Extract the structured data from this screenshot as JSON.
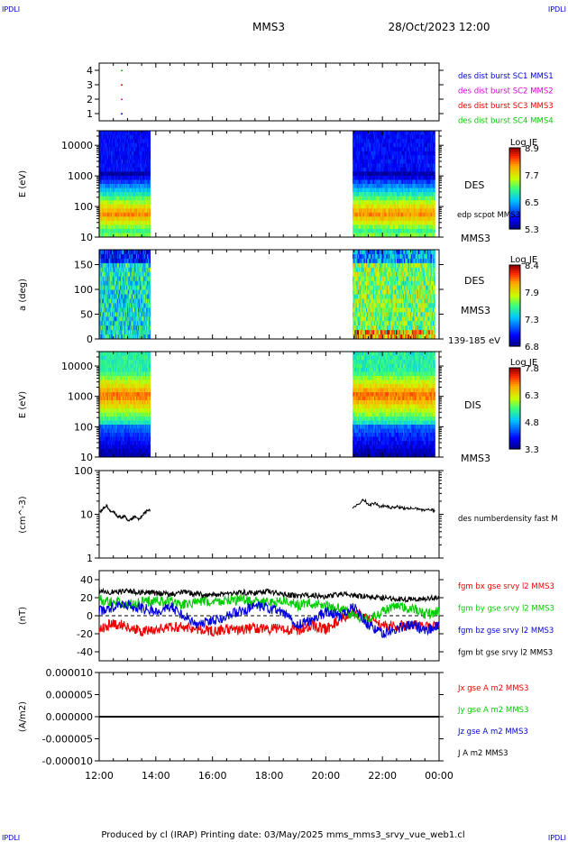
{
  "header": {
    "corner_tl": "IPDLI",
    "corner_tr": "IPDLI",
    "corner_bl": "IPDLI",
    "corner_br": "IPDLI",
    "spacecraft": "MMS3",
    "datetime": "28/Oct/2023 12:00"
  },
  "footer": {
    "credit": "Produced by cl (IRAP)   Printing date: 03/May/2025   mms_mms3_srvy_vue_web1.cl"
  },
  "colors": {
    "blue": "#0000dd",
    "magenta": "#dd00dd",
    "red": "#ee0000",
    "green": "#00cc00",
    "black": "#000000"
  },
  "chart_data": {
    "type": "multi-panel",
    "xaxis": {
      "ticks": [
        "12:00",
        "14:00",
        "16:00",
        "18:00",
        "20:00",
        "22:00",
        "00:00"
      ],
      "range_hours": [
        0,
        12
      ]
    },
    "panels": [
      {
        "id": "burst",
        "type": "scatter",
        "yticks": [
          "4",
          "3",
          "2",
          "1"
        ],
        "ylim": [
          0.5,
          4.5
        ],
        "legend": [
          {
            "label": "des dist burst SC1 MMS1",
            "color": "#0000dd"
          },
          {
            "label": "des dist burst SC2 MMS2",
            "color": "#dd00dd"
          },
          {
            "label": "des dist burst SC3 MMS3",
            "color": "#ee0000"
          },
          {
            "label": "des dist burst SC4 MMS4",
            "color": "#00cc00"
          }
        ],
        "points": [
          {
            "t": 0.8,
            "y": 4,
            "color": "#00cc00"
          },
          {
            "t": 0.8,
            "y": 3,
            "color": "#ee0000"
          },
          {
            "t": 0.8,
            "y": 2,
            "color": "#dd00dd"
          },
          {
            "t": 0.8,
            "y": 1,
            "color": "#0000dd"
          }
        ]
      },
      {
        "id": "des_energy",
        "type": "heatmap",
        "ylabel": "E (eV)",
        "yscale": "log",
        "ylim": [
          10,
          30000
        ],
        "yticks": [
          "10000",
          "1000",
          "100",
          "10"
        ],
        "tag": "DES",
        "tag2": "MMS3",
        "overlay_label": "edp scpot MMS3",
        "colorbar": {
          "title": "Log JE",
          "ticks": [
            "8.9",
            "7.7",
            "6.5",
            "5.3"
          ],
          "range": [
            5.3,
            8.9
          ]
        },
        "data_intervals_hours": [
          [
            0.0,
            1.8
          ],
          [
            8.95,
            11.85
          ]
        ]
      },
      {
        "id": "des_pitch",
        "type": "heatmap",
        "ylabel": "a (deg)",
        "ylim": [
          0,
          180
        ],
        "yticks": [
          "150",
          "100",
          "50",
          "0"
        ],
        "tag": "DES",
        "tag2": "MMS3",
        "energy_range": "139-185 eV",
        "colorbar": {
          "title": "Log JE",
          "ticks": [
            "8.4",
            "7.9",
            "7.3",
            "6.8"
          ],
          "range": [
            6.8,
            8.4
          ]
        },
        "data_intervals_hours": [
          [
            0.0,
            1.8
          ],
          [
            8.95,
            11.85
          ]
        ]
      },
      {
        "id": "dis_energy",
        "type": "heatmap",
        "ylabel": "E (eV)",
        "yscale": "log",
        "ylim": [
          10,
          30000
        ],
        "yticks": [
          "10000",
          "1000",
          "100",
          "10"
        ],
        "tag": "DIS",
        "tag2": "MMS3",
        "colorbar": {
          "title": "Log JE",
          "ticks": [
            "7.8",
            "6.3",
            "4.8",
            "3.3"
          ],
          "range": [
            3.3,
            7.8
          ]
        },
        "data_intervals_hours": [
          [
            0.0,
            1.8
          ],
          [
            8.95,
            11.85
          ]
        ]
      },
      {
        "id": "density",
        "type": "line",
        "ylabel": "(cm^-3)",
        "yscale": "log",
        "ylim": [
          1,
          100
        ],
        "yticks": [
          "100",
          "10",
          "1"
        ],
        "legend": [
          {
            "label": "des numberdensity fast M",
            "color": "#000000"
          }
        ],
        "segments": [
          {
            "t0": 0.0,
            "t1": 1.8,
            "values": [
              11,
              13,
              16,
              12,
              11,
              9,
              8.5,
              9,
              7,
              8,
              9,
              7.5,
              10,
              12,
              13
            ]
          },
          {
            "t0": 8.95,
            "t1": 11.85,
            "values": [
              14,
              17,
              22,
              16,
              18,
              15,
              16,
              14,
              15,
              14,
              13.5,
              14,
              13,
              12.5,
              13,
              12
            ]
          }
        ]
      },
      {
        "id": "bfield",
        "type": "line",
        "ylabel": "(nT)",
        "ylim": [
          -50,
          50
        ],
        "yticks": [
          "40",
          "20",
          "0",
          "-20",
          "-40"
        ],
        "legend": [
          {
            "label": "fgm bx gse srvy l2 MMS3",
            "color": "#ee0000"
          },
          {
            "label": "fgm by gse srvy l2 MMS3",
            "color": "#00cc00"
          },
          {
            "label": "fgm bz gse srvy l2 MMS3",
            "color": "#0000dd"
          },
          {
            "label": "fgm bt gse srvy l2 MMS3",
            "color": "#000000"
          }
        ],
        "x_hours": [
          0,
          0.5,
          1,
          1.5,
          2,
          2.5,
          3,
          3.5,
          4,
          4.5,
          5,
          5.5,
          6,
          6.5,
          7,
          7.5,
          8,
          8.5,
          9,
          9.5,
          10,
          10.5,
          11,
          11.5,
          12
        ],
        "series": [
          {
            "name": "fgm bx gse srvy l2 MMS3",
            "color": "#ee0000",
            "values": [
              -15,
              -8,
              -12,
              -18,
              -15,
              -13,
              -12,
              -15,
              -17,
              -15,
              -16,
              -13,
              -15,
              -14,
              -17,
              -10,
              -15,
              -5,
              5,
              -5,
              -10,
              -12,
              -10,
              -13,
              -10
            ]
          },
          {
            "name": "fgm by gse srvy l2 MMS3",
            "color": "#00cc00",
            "values": [
              18,
              16,
              12,
              15,
              17,
              15,
              12,
              16,
              15,
              17,
              18,
              15,
              14,
              17,
              12,
              14,
              10,
              8,
              0,
              -5,
              5,
              10,
              8,
              2,
              5
            ]
          },
          {
            "name": "fgm bz gse srvy l2 MMS3",
            "color": "#0000dd",
            "values": [
              5,
              10,
              12,
              8,
              5,
              10,
              0,
              -10,
              -5,
              0,
              5,
              10,
              8,
              3,
              -10,
              -5,
              5,
              0,
              10,
              -10,
              -20,
              -15,
              -10,
              -15,
              -12
            ]
          },
          {
            "name": "fgm bt gse srvy l2 MMS3",
            "color": "#000000",
            "values": [
              28,
              26,
              27,
              26,
              25,
              24,
              26,
              24,
              23,
              25,
              26,
              25,
              27,
              24,
              22,
              23,
              21,
              24,
              22,
              21,
              20,
              19,
              18,
              19,
              20
            ]
          }
        ]
      },
      {
        "id": "current",
        "type": "line",
        "ylabel": "(A/m2)",
        "ylim": [
          -1e-05,
          1e-05
        ],
        "yticks": [
          "0.000010",
          "0.000005",
          "0.000000",
          "-0.000005",
          "-0.000010"
        ],
        "legend": [
          {
            "label": "Jx gse A m2 MMS3",
            "color": "#ee0000"
          },
          {
            "label": "Jy gse A m2 MMS3",
            "color": "#00cc00"
          },
          {
            "label": "Jz gse A m2 MMS3",
            "color": "#0000dd"
          },
          {
            "label": "J A m2 MMS3",
            "color": "#000000"
          }
        ],
        "x_hours": [
          0,
          12
        ],
        "series_value": 0.0
      }
    ]
  }
}
